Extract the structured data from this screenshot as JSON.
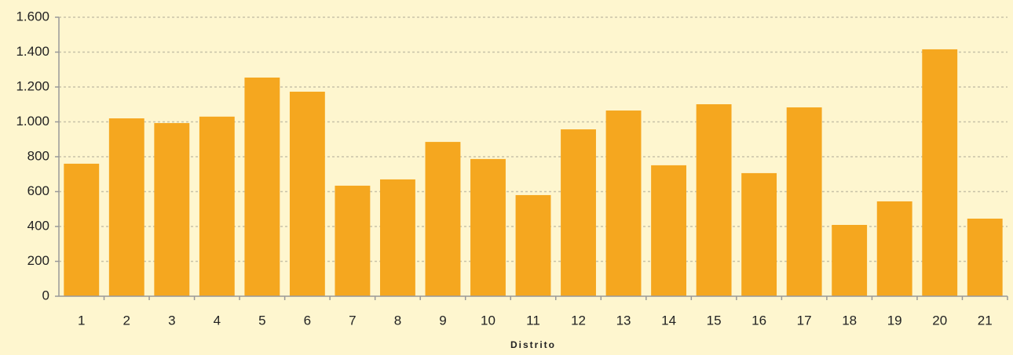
{
  "chart_data": {
    "type": "bar",
    "x_label": "Distrito",
    "categories": [
      "1",
      "2",
      "3",
      "4",
      "5",
      "6",
      "7",
      "8",
      "9",
      "10",
      "11",
      "12",
      "13",
      "14",
      "15",
      "16",
      "17",
      "18",
      "19",
      "20",
      "21"
    ],
    "values": [
      760,
      1020,
      993,
      1030,
      1254,
      1173,
      634,
      670,
      885,
      787,
      580,
      957,
      1065,
      751,
      1101,
      706,
      1083,
      409,
      544,
      1416,
      445
    ],
    "color": "#f5a71f",
    "ylim": [
      0,
      1600
    ],
    "yticks": [
      0,
      200,
      400,
      600,
      800,
      {
        "value": 1000,
        "label": "1.000"
      },
      {
        "value": 1200,
        "label": "1.200"
      },
      {
        "value": 1400,
        "label": "1.400"
      },
      {
        "value": 1600,
        "label": "1.600"
      }
    ],
    "grid": true
  }
}
